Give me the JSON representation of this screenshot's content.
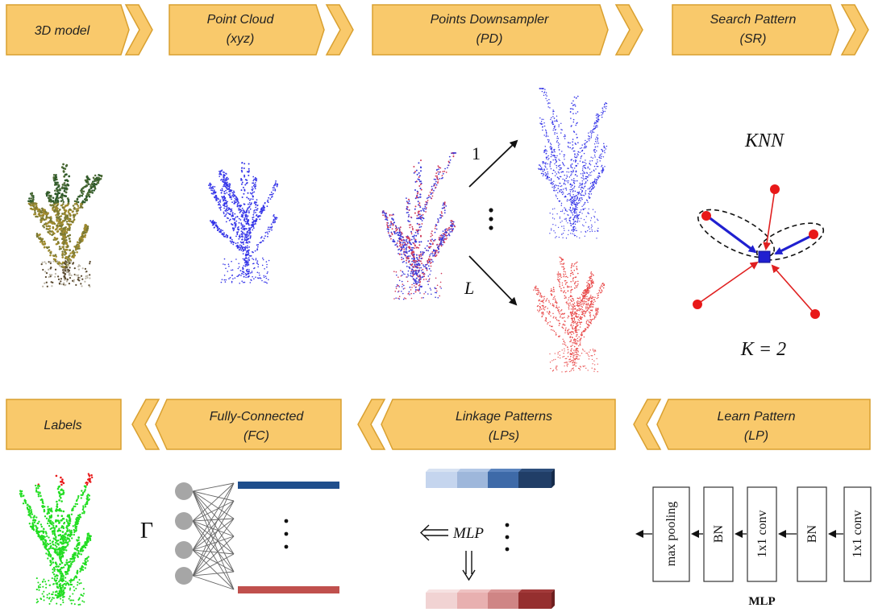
{
  "banners_top": [
    {
      "line1": "3D model",
      "line2": ""
    },
    {
      "line1": "Point Cloud",
      "line2": "(xyz)"
    },
    {
      "line1": "Points Downsampler",
      "line2": "(PD)"
    },
    {
      "line1": "Search Pattern",
      "line2": "(SR)"
    }
  ],
  "banners_bottom": [
    {
      "line1": "Labels",
      "line2": ""
    },
    {
      "line1": "Fully-Connected",
      "line2": "(FC)"
    },
    {
      "line1": "Linkage Patterns",
      "line2": "(LPs)"
    },
    {
      "line1": "Learn Pattern",
      "line2": "(LP)"
    }
  ],
  "downsampler": {
    "first_label": "1",
    "last_label": "L"
  },
  "knn": {
    "title": "KNN",
    "k_label": "K = 2"
  },
  "fc": {
    "gamma": "Γ"
  },
  "linkage": {
    "mlp_label": "MLP"
  },
  "learn_pattern": {
    "blocks": [
      "max pooling",
      "BN",
      "1x1 conv",
      "BN",
      "1x1 conv"
    ],
    "caption": "MLP"
  },
  "colors": {
    "banner_fill": "#F9C96B",
    "banner_stroke": "#D9A030",
    "blue_points": "#3A3AE0",
    "red_points": "#E23A3A",
    "green_points": "#22DD22",
    "dark_blue_bar": "#1F4E8C",
    "dark_red_bar": "#C0504D"
  }
}
